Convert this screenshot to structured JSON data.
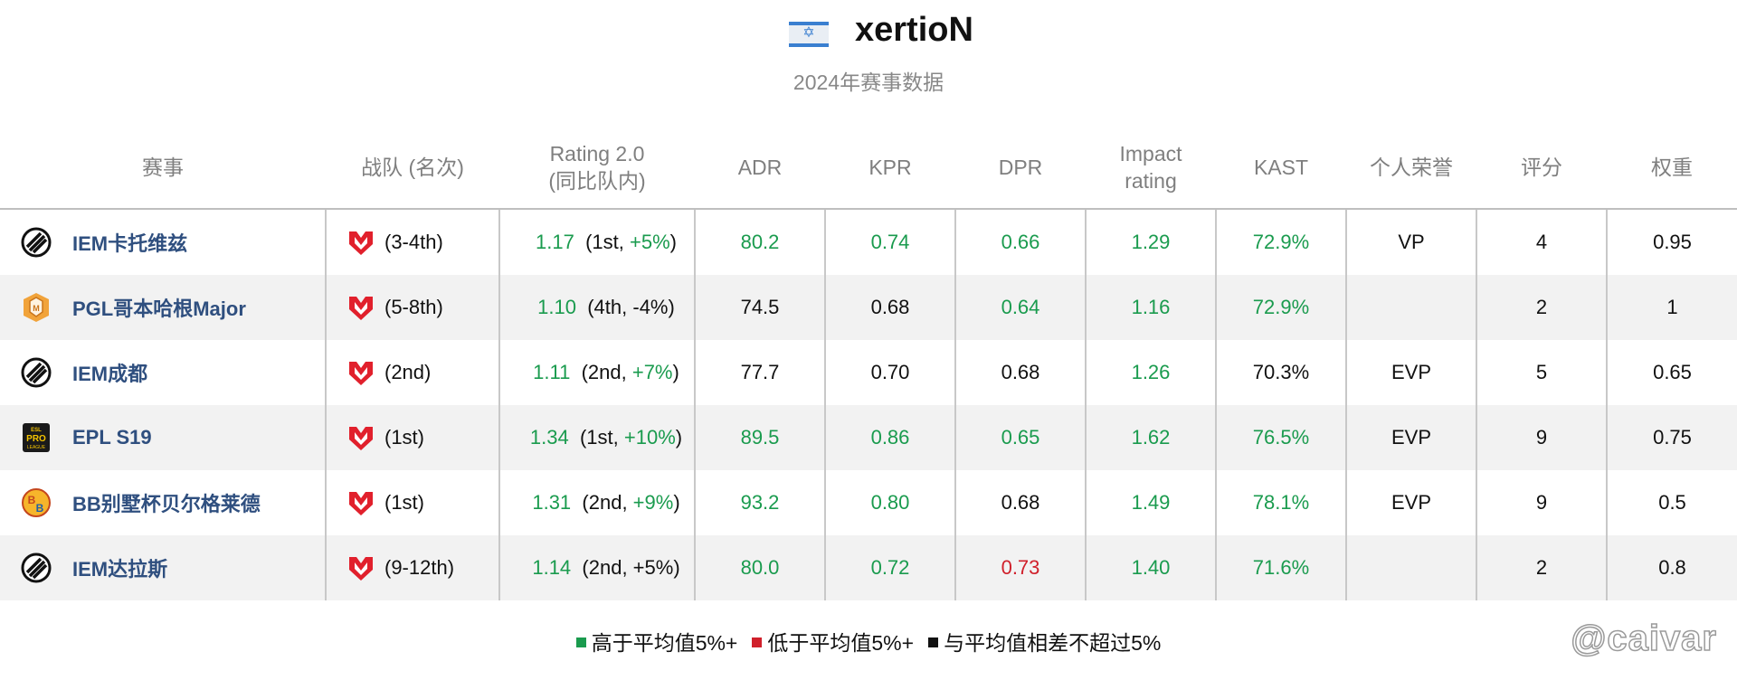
{
  "header": {
    "flag_icon": "israel-flag-icon",
    "player": "xertioN",
    "subtitle": "2024年赛事数据"
  },
  "table": {
    "columns": [
      "赛事",
      "战队 (名次)",
      "Rating 2.0\n(同比队内)",
      "ADR",
      "KPR",
      "DPR",
      "Impact\nrating",
      "KAST",
      "个人荣誉",
      "评分",
      "权重"
    ],
    "rows": [
      {
        "event_icon": "iem-logo-icon",
        "event": "IEM卡托维兹",
        "team_icon": "mouz-logo-icon",
        "placement": "(3-4th)",
        "rating": "1.17",
        "rating_rank": "(1st, ",
        "rating_diff": "+5%",
        "rating_close": ")",
        "adr": "80.2",
        "kpr": "0.74",
        "dpr": "0.66",
        "impact": "1.29",
        "kast": "72.9%",
        "honor": "VP",
        "score": "4",
        "weight": "0.95",
        "colors": {
          "rating": "pos",
          "diff": "pos",
          "adr": "pos",
          "kpr": "pos",
          "dpr": "pos",
          "impact": "pos",
          "kast": "pos"
        }
      },
      {
        "event_icon": "pgl-logo-icon",
        "event": "PGL哥本哈根Major",
        "team_icon": "mouz-logo-icon",
        "placement": "(5-8th)",
        "rating": "1.10",
        "rating_rank": "(4th, ",
        "rating_diff": "-4%",
        "rating_close": ")",
        "adr": "74.5",
        "kpr": "0.68",
        "dpr": "0.64",
        "impact": "1.16",
        "kast": "72.9%",
        "honor": "",
        "score": "2",
        "weight": "1",
        "colors": {
          "rating": "pos",
          "diff": "neu",
          "adr": "neu",
          "kpr": "neu",
          "dpr": "pos",
          "impact": "pos",
          "kast": "pos"
        }
      },
      {
        "event_icon": "iem-logo-icon",
        "event": "IEM成都",
        "team_icon": "mouz-logo-icon",
        "placement": "(2nd)",
        "rating": "1.11",
        "rating_rank": "(2nd, ",
        "rating_diff": "+7%",
        "rating_close": ")",
        "adr": "77.7",
        "kpr": "0.70",
        "dpr": "0.68",
        "impact": "1.26",
        "kast": "70.3%",
        "honor": "EVP",
        "score": "5",
        "weight": "0.65",
        "colors": {
          "rating": "pos",
          "diff": "pos",
          "adr": "neu",
          "kpr": "neu",
          "dpr": "neu",
          "impact": "pos",
          "kast": "neu"
        }
      },
      {
        "event_icon": "esl-pro-league-logo-icon",
        "event": "EPL S19",
        "team_icon": "mouz-logo-icon",
        "placement": "(1st)",
        "rating": "1.34",
        "rating_rank": "(1st, ",
        "rating_diff": "+10%",
        "rating_close": ")",
        "adr": "89.5",
        "kpr": "0.86",
        "dpr": "0.65",
        "impact": "1.62",
        "kast": "76.5%",
        "honor": "EVP",
        "score": "9",
        "weight": "0.75",
        "colors": {
          "rating": "pos",
          "diff": "pos",
          "adr": "pos",
          "kpr": "pos",
          "dpr": "pos",
          "impact": "pos",
          "kast": "pos"
        }
      },
      {
        "event_icon": "blast-bravado-logo-icon",
        "event": "BB别墅杯贝尔格莱德",
        "team_icon": "mouz-logo-icon",
        "placement": "(1st)",
        "rating": "1.31",
        "rating_rank": "(2nd, ",
        "rating_diff": "+9%",
        "rating_close": ")",
        "adr": "93.2",
        "kpr": "0.80",
        "dpr": "0.68",
        "impact": "1.49",
        "kast": "78.1%",
        "honor": "EVP",
        "score": "9",
        "weight": "0.5",
        "colors": {
          "rating": "pos",
          "diff": "pos",
          "adr": "pos",
          "kpr": "pos",
          "dpr": "neu",
          "impact": "pos",
          "kast": "pos"
        }
      },
      {
        "event_icon": "iem-logo-icon",
        "event": "IEM达拉斯",
        "team_icon": "mouz-logo-icon",
        "placement": "(9-12th)",
        "rating": "1.14",
        "rating_rank": "(2nd, ",
        "rating_diff": "+5%",
        "rating_close": ")",
        "adr": "80.0",
        "kpr": "0.72",
        "dpr": "0.73",
        "impact": "1.40",
        "kast": "71.6%",
        "honor": "",
        "score": "2",
        "weight": "0.8",
        "colors": {
          "rating": "pos",
          "diff": "neu",
          "adr": "pos",
          "kpr": "pos",
          "dpr": "neg",
          "impact": "pos",
          "kast": "pos"
        }
      }
    ]
  },
  "legend": [
    {
      "label": "高于平均值5%+",
      "color": "#1a9b4e"
    },
    {
      "label": "低于平均值5%+",
      "color": "#d0202b"
    },
    {
      "label": "与平均值相差不超过5%",
      "color": "#111111"
    }
  ],
  "watermark": "@caivar",
  "colors": {
    "pos": "#1a9b4e",
    "neg": "#d0202b",
    "neu": "#111111",
    "event_name": "#2f4f7f",
    "header_text": "#7f7f7f"
  }
}
